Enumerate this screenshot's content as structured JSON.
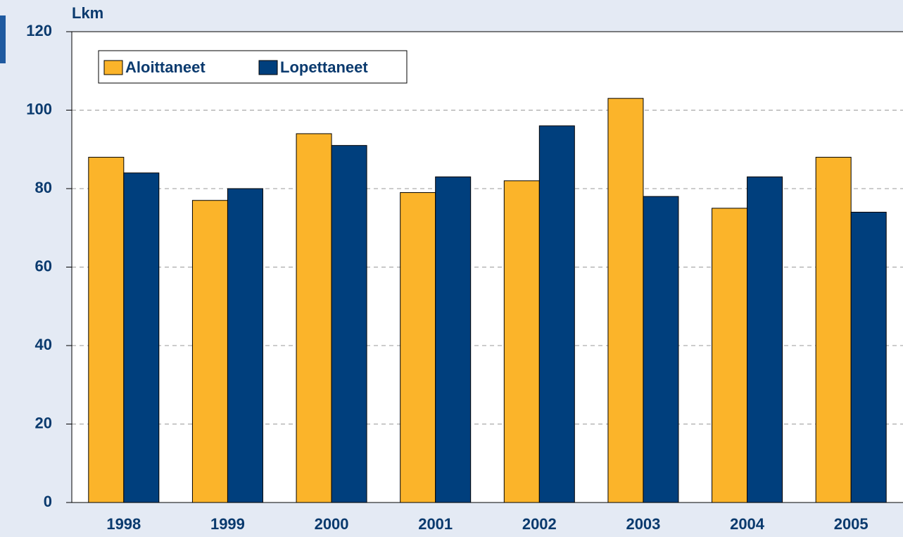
{
  "chart_data": {
    "type": "bar",
    "ylabel": "Lkm",
    "categories": [
      "1998",
      "1999",
      "2000",
      "2001",
      "2002",
      "2003",
      "2004",
      "2005"
    ],
    "series": [
      {
        "name": "Aloittaneet",
        "color": "#fbb42a",
        "values": [
          88,
          77,
          94,
          79,
          82,
          103,
          75,
          88
        ]
      },
      {
        "name": "Lopettaneet",
        "color": "#003f7d",
        "values": [
          84,
          80,
          91,
          83,
          96,
          78,
          83,
          74
        ]
      }
    ],
    "ylim": [
      0,
      120
    ],
    "yticks": [
      0,
      20,
      40,
      60,
      80,
      100,
      120
    ],
    "grid": true,
    "legend": "top-left"
  }
}
